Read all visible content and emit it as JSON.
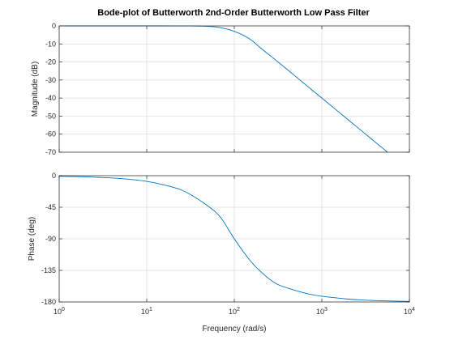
{
  "chart_data": {
    "type": "line",
    "title": "Bode-plot of Butterworth 2nd-Order Butterworth Low Pass Filter",
    "xlabel": "Frequency (rad/s)",
    "xscale": "log",
    "xlim": [
      1,
      10000
    ],
    "x_ticks": [
      {
        "value": 1,
        "base": "10",
        "exp": "0"
      },
      {
        "value": 10,
        "base": "10",
        "exp": "1"
      },
      {
        "value": 100,
        "base": "10",
        "exp": "2"
      },
      {
        "value": 1000,
        "base": "10",
        "exp": "3"
      },
      {
        "value": 10000,
        "base": "10",
        "exp": "4"
      }
    ],
    "grid": true,
    "panels": [
      {
        "ylabel": "Magnitude (dB)",
        "ylim": [
          -70,
          0
        ],
        "y_ticks": [
          0,
          -10,
          -20,
          -30,
          -40,
          -50,
          -60,
          -70
        ],
        "color": "#0072bd",
        "x": [
          1,
          2,
          5,
          10,
          20,
          30,
          50,
          70,
          100,
          150,
          200,
          300,
          500,
          700,
          1000,
          2000,
          3000,
          5000,
          5623
        ],
        "y": [
          0,
          0,
          0,
          0,
          -0.01,
          -0.03,
          -0.26,
          -0.96,
          -3.01,
          -7.24,
          -12.3,
          -19.09,
          -27.96,
          -33.8,
          -40.0,
          -52.04,
          -59.08,
          -67.96,
          -70.0
        ]
      },
      {
        "ylabel": "Phase (deg)",
        "ylim": [
          -180,
          0
        ],
        "y_ticks": [
          0,
          -45,
          -90,
          -135,
          -180
        ],
        "color": "#0072bd",
        "x": [
          1,
          2,
          5,
          10,
          20,
          30,
          50,
          70,
          100,
          150,
          200,
          300,
          500,
          700,
          1000,
          2000,
          3000,
          5000,
          10000
        ],
        "y": [
          -0.81,
          -1.62,
          -4.06,
          -8.13,
          -16.56,
          -25.34,
          -43.31,
          -59.74,
          -90.0,
          -120.27,
          -136.69,
          -153.86,
          -163.63,
          -168.52,
          -171.9,
          -175.95,
          -177.3,
          -178.38,
          -179.19
        ]
      }
    ]
  }
}
